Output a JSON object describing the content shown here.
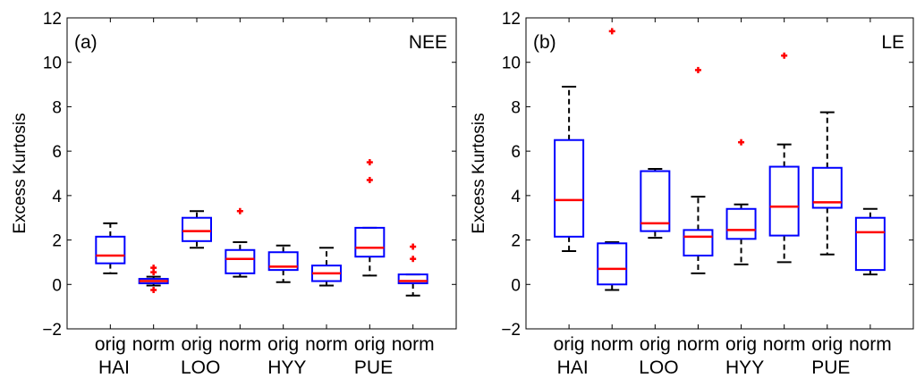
{
  "chart_data": [
    {
      "type": "box",
      "panel_label": "(a)",
      "variable_label": "NEE",
      "ylabel": "Excess Kurtosis",
      "ylim": [
        -2,
        12
      ],
      "yticks": [
        "−2",
        "0",
        "2",
        "4",
        "6",
        "8",
        "10",
        "12"
      ],
      "ytick_values": [
        -2,
        0,
        2,
        4,
        6,
        8,
        10,
        12
      ],
      "categories": [
        "orig",
        "norm",
        "orig",
        "norm",
        "orig",
        "norm",
        "orig",
        "norm"
      ],
      "groups": [
        "HAI",
        "LOO",
        "HYY",
        "PUE"
      ],
      "boxes": [
        {
          "whisker_low": 0.5,
          "q1": 0.95,
          "median": 1.3,
          "q3": 2.15,
          "whisker_high": 2.75,
          "outliers": []
        },
        {
          "whisker_low": -0.05,
          "q1": 0.05,
          "median": 0.15,
          "q3": 0.25,
          "whisker_high": 0.35,
          "outliers": [
            0.55,
            0.75,
            -0.25
          ]
        },
        {
          "whisker_low": 1.65,
          "q1": 1.95,
          "median": 2.4,
          "q3": 3.0,
          "whisker_high": 3.3,
          "outliers": []
        },
        {
          "whisker_low": 0.35,
          "q1": 0.5,
          "median": 1.15,
          "q3": 1.55,
          "whisker_high": 1.9,
          "outliers": [
            3.3
          ]
        },
        {
          "whisker_low": 0.1,
          "q1": 0.65,
          "median": 0.8,
          "q3": 1.45,
          "whisker_high": 1.75,
          "outliers": []
        },
        {
          "whisker_low": -0.05,
          "q1": 0.15,
          "median": 0.5,
          "q3": 0.85,
          "whisker_high": 1.65,
          "outliers": []
        },
        {
          "whisker_low": 0.4,
          "q1": 1.25,
          "median": 1.65,
          "q3": 2.55,
          "whisker_high": 2.55,
          "outliers": [
            4.7,
            5.5
          ]
        },
        {
          "whisker_low": -0.5,
          "q1": 0.05,
          "median": 0.15,
          "q3": 0.45,
          "whisker_high": 0.45,
          "outliers": [
            1.15,
            1.7
          ]
        }
      ],
      "box_color": "#0000ff",
      "median_color": "#ff0000",
      "whisker_color": "#000000",
      "outlier_color": "#ff0000"
    },
    {
      "type": "box",
      "panel_label": "(b)",
      "variable_label": "LE",
      "ylabel": "Excess Kurtosis",
      "ylim": [
        -2,
        12
      ],
      "yticks": [
        "−2",
        "0",
        "2",
        "4",
        "6",
        "8",
        "10",
        "12"
      ],
      "ytick_values": [
        -2,
        0,
        2,
        4,
        6,
        8,
        10,
        12
      ],
      "categories": [
        "orig",
        "norm",
        "orig",
        "norm",
        "orig",
        "norm",
        "orig",
        "norm"
      ],
      "groups": [
        "HAI",
        "LOO",
        "HYY",
        "PUE"
      ],
      "boxes": [
        {
          "whisker_low": 1.5,
          "q1": 2.15,
          "median": 3.8,
          "q3": 6.5,
          "whisker_high": 8.9,
          "outliers": []
        },
        {
          "whisker_low": -0.25,
          "q1": 0.0,
          "median": 0.7,
          "q3": 1.85,
          "whisker_high": 1.9,
          "outliers": [
            11.4
          ]
        },
        {
          "whisker_low": 2.1,
          "q1": 2.4,
          "median": 2.75,
          "q3": 5.1,
          "whisker_high": 5.2,
          "outliers": []
        },
        {
          "whisker_low": 0.5,
          "q1": 1.3,
          "median": 2.15,
          "q3": 2.45,
          "whisker_high": 3.95,
          "outliers": [
            9.65
          ]
        },
        {
          "whisker_low": 0.9,
          "q1": 2.05,
          "median": 2.45,
          "q3": 3.4,
          "whisker_high": 3.6,
          "outliers": [
            6.4
          ]
        },
        {
          "whisker_low": 1.0,
          "q1": 2.2,
          "median": 3.5,
          "q3": 5.3,
          "whisker_high": 6.3,
          "outliers": [
            10.3
          ]
        },
        {
          "whisker_low": 1.35,
          "q1": 3.45,
          "median": 3.7,
          "q3": 5.25,
          "whisker_high": 7.75,
          "outliers": []
        },
        {
          "whisker_low": 0.45,
          "q1": 0.65,
          "median": 2.35,
          "q3": 3.0,
          "whisker_high": 3.4,
          "outliers": []
        }
      ],
      "box_color": "#0000ff",
      "median_color": "#ff0000",
      "whisker_color": "#000000",
      "outlier_color": "#ff0000"
    }
  ]
}
